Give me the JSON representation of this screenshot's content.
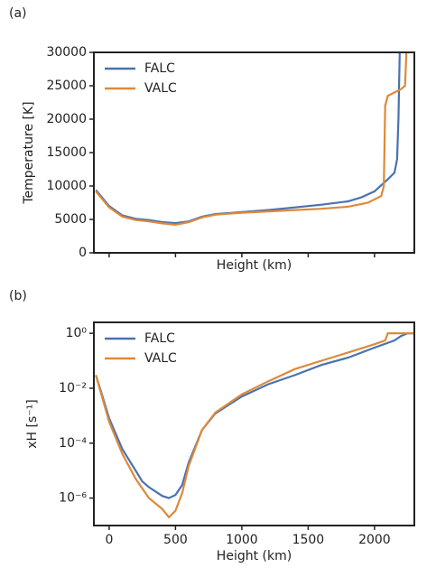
{
  "chart_data": [
    {
      "type": "line",
      "label": "(a)",
      "xlabel": "Height (km)",
      "ylabel": "Temperature [K]",
      "xlim": [
        -115,
        2300
      ],
      "ylim": [
        0,
        30000
      ],
      "yticks": [
        0,
        5000,
        10000,
        15000,
        20000,
        25000,
        30000
      ],
      "legend": "upper left",
      "series": [
        {
          "name": "FALC",
          "color": "#4a72b0",
          "x": [
            -100,
            0,
            100,
            200,
            300,
            400,
            500,
            600,
            700,
            800,
            1000,
            1200,
            1400,
            1600,
            1800,
            1900,
            2000,
            2100,
            2150,
            2170,
            2180,
            2190
          ],
          "values": [
            9400,
            7000,
            5600,
            5100,
            4900,
            4600,
            4450,
            4700,
            5400,
            5800,
            6100,
            6400,
            6800,
            7200,
            7700,
            8300,
            9200,
            11000,
            12000,
            14000,
            20000,
            30000
          ]
        },
        {
          "name": "VALC",
          "color": "#dd8a3a",
          "x": [
            -100,
            0,
            100,
            200,
            300,
            400,
            500,
            600,
            700,
            800,
            1000,
            1200,
            1400,
            1600,
            1800,
            1950,
            2050,
            2070,
            2080,
            2100,
            2200,
            2230,
            2240
          ],
          "values": [
            9200,
            6800,
            5400,
            4900,
            4700,
            4400,
            4200,
            4600,
            5300,
            5700,
            6000,
            6200,
            6400,
            6600,
            6900,
            7500,
            8500,
            10000,
            22000,
            23500,
            24500,
            25000,
            30000
          ]
        }
      ]
    },
    {
      "type": "line",
      "label": "(b)",
      "xlabel": "Height (km)",
      "ylabel": "xH [s⁻¹]",
      "xlim": [
        -115,
        2300
      ],
      "xticks": [
        0,
        500,
        1000,
        1500,
        2000
      ],
      "yscale": "log",
      "ylim": [
        1e-07,
        2.5
      ],
      "yticks": [
        {
          "value": 1e-06,
          "label": "10⁻⁶"
        },
        {
          "value": 0.0001,
          "label": "10⁻⁴"
        },
        {
          "value": 0.01,
          "label": "10⁻²"
        },
        {
          "value": 1,
          "label": "10⁰"
        }
      ],
      "legend": "upper left",
      "series": [
        {
          "name": "FALC",
          "color": "#4a72b0",
          "x": [
            -100,
            -50,
            0,
            100,
            200,
            250,
            300,
            400,
            450,
            500,
            550,
            600,
            700,
            800,
            1000,
            1200,
            1400,
            1600,
            1800,
            2000,
            2150,
            2200,
            2250,
            2300
          ],
          "values": [
            0.03,
            0.005,
            0.0008,
            6e-05,
            1e-05,
            4e-06,
            2.5e-06,
            1.2e-06,
            1e-06,
            1.3e-06,
            3e-06,
            2e-05,
            0.0003,
            0.0012,
            0.005,
            0.014,
            0.03,
            0.07,
            0.13,
            0.3,
            0.55,
            0.8,
            1,
            1
          ]
        },
        {
          "name": "VALC",
          "color": "#dd8a3a",
          "x": [
            -100,
            0,
            100,
            200,
            300,
            400,
            450,
            500,
            550,
            600,
            700,
            800,
            1000,
            1200,
            1400,
            1600,
            1800,
            2000,
            2080,
            2100,
            2300
          ],
          "values": [
            0.03,
            0.0006,
            4e-05,
            5e-06,
            1e-06,
            4e-07,
            2e-07,
            3.5e-07,
            1.5e-06,
            1.5e-05,
            0.0003,
            0.0013,
            0.006,
            0.018,
            0.05,
            0.1,
            0.2,
            0.4,
            0.55,
            1,
            1
          ]
        }
      ]
    }
  ]
}
